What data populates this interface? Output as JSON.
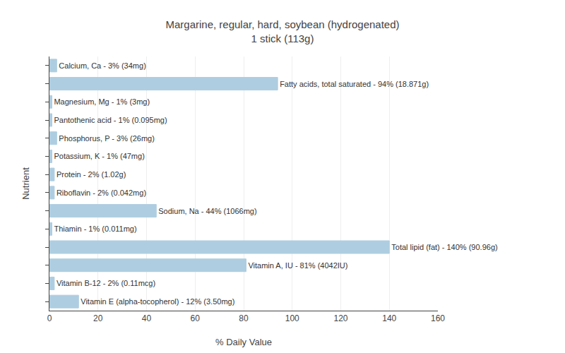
{
  "chart_data": {
    "type": "bar",
    "orientation": "horizontal",
    "title": "Margarine, regular, hard, soybean (hydrogenated)\n1 stick (113g)",
    "xlabel": "% Daily Value",
    "ylabel": "Nutrient",
    "categories": [
      "Calcium, Ca - 3% (34mg)",
      "Fatty acids, total saturated - 94% (18.871g)",
      "Magnesium, Mg - 1% (3mg)",
      "Pantothenic acid - 1% (0.095mg)",
      "Phosphorus, P - 3% (26mg)",
      "Potassium, K - 1% (47mg)",
      "Protein - 2% (1.02g)",
      "Riboflavin - 2% (0.042mg)",
      "Sodium, Na - 44% (1066mg)",
      "Thiamin - 1% (0.011mg)",
      "Total lipid (fat) - 140% (90.96g)",
      "Vitamin A, IU - 81% (4042IU)",
      "Vitamin B-12 - 2% (0.11mcg)",
      "Vitamin E (alpha-tocopherol) - 12% (3.50mg)"
    ],
    "values": [
      3,
      94,
      1,
      1,
      3,
      1,
      2,
      2,
      44,
      1,
      140,
      81,
      2,
      12
    ],
    "color": "#aecde0",
    "xlim": [
      0,
      160
    ],
    "xticks": [
      0,
      20,
      40,
      60,
      80,
      100,
      120,
      140,
      160
    ],
    "grid": true,
    "tick_labels": "x"
  }
}
